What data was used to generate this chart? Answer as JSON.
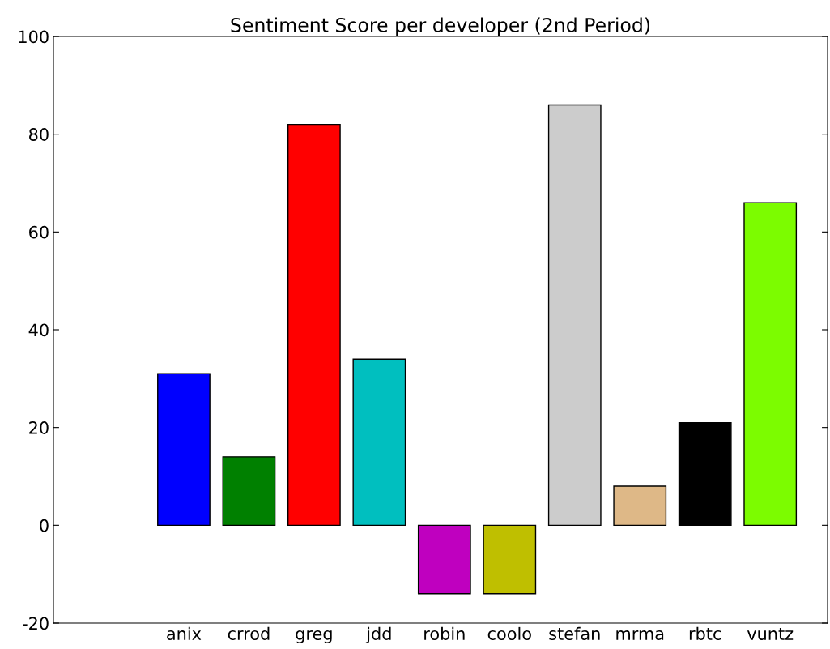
{
  "chart_data": {
    "type": "bar",
    "title": "Sentiment Score per developer (2nd Period)",
    "categories": [
      "anix",
      "crrod",
      "greg",
      "jdd",
      "robin",
      "coolo",
      "stefan",
      "mrma",
      "rbtc",
      "vuntz"
    ],
    "values": [
      31,
      14,
      82,
      34,
      -14,
      -14,
      86,
      8,
      21,
      66
    ],
    "colors": [
      "#0000ff",
      "#008000",
      "#ff0000",
      "#00bfbf",
      "#bf00bf",
      "#bfbf00",
      "#cccccc",
      "#deb887",
      "#000000",
      "#7cfc00"
    ],
    "ylim": [
      -20,
      100
    ],
    "yticks": [
      -20,
      0,
      20,
      40,
      60,
      80,
      100
    ],
    "grid": false
  }
}
